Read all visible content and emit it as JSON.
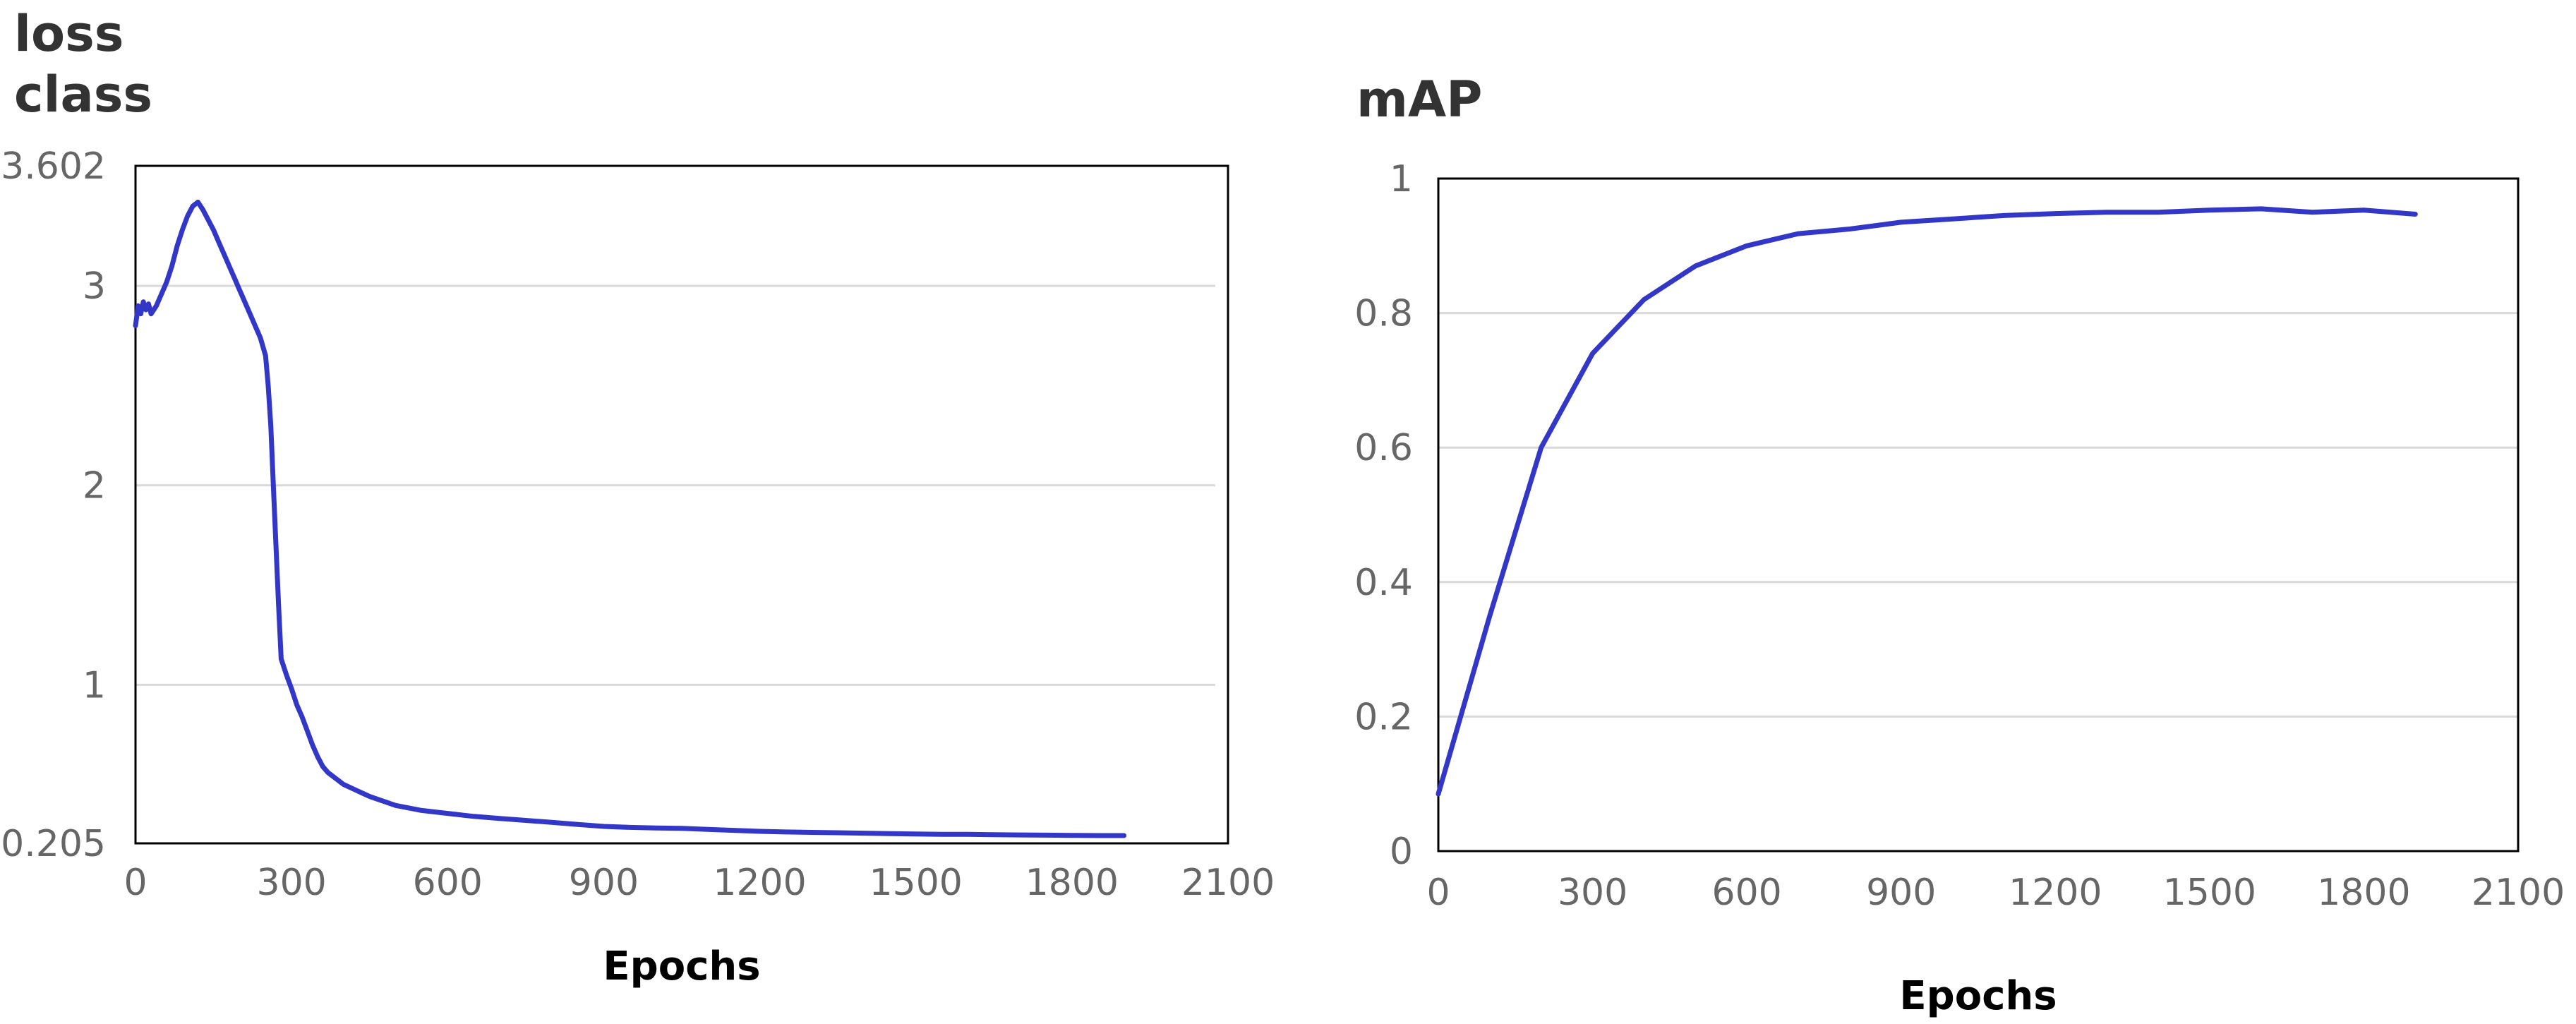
{
  "chart_data": [
    {
      "type": "line",
      "title_lines": [
        "loss",
        "class"
      ],
      "xlabel": "Epochs",
      "ylabel": "",
      "xlim": [
        0,
        2100
      ],
      "ylim": [
        0.205,
        3.602
      ],
      "x_ticks": [
        0,
        300,
        600,
        900,
        1200,
        1500,
        1800,
        2100
      ],
      "y_ticks": [
        0.205,
        1,
        2,
        3,
        3.602
      ],
      "y_gridlines": [
        1,
        2,
        3
      ],
      "grid": true,
      "legend": "none",
      "line_color": "#3337c8",
      "series": [
        {
          "x": [
            0,
            5,
            10,
            15,
            20,
            25,
            30,
            40,
            50,
            60,
            70,
            80,
            90,
            100,
            110,
            120,
            130,
            140,
            150,
            160,
            170,
            180,
            190,
            200,
            210,
            220,
            230,
            240,
            250,
            255,
            260,
            265,
            270,
            275,
            280,
            290,
            300,
            310,
            320,
            330,
            340,
            350,
            360,
            370,
            380,
            400,
            450,
            500,
            550,
            600,
            650,
            700,
            750,
            800,
            850,
            900,
            950,
            1000,
            1050,
            1100,
            1150,
            1200,
            1250,
            1300,
            1350,
            1400,
            1450,
            1500,
            1550,
            1600,
            1650,
            1700,
            1750,
            1800,
            1850,
            1900
          ],
          "y": [
            2.8,
            2.9,
            2.86,
            2.92,
            2.88,
            2.91,
            2.86,
            2.9,
            2.96,
            3.02,
            3.1,
            3.2,
            3.28,
            3.35,
            3.4,
            3.42,
            3.38,
            3.33,
            3.28,
            3.22,
            3.16,
            3.1,
            3.04,
            2.98,
            2.92,
            2.86,
            2.8,
            2.74,
            2.65,
            2.5,
            2.3,
            2.0,
            1.7,
            1.4,
            1.13,
            1.05,
            0.98,
            0.9,
            0.84,
            0.77,
            0.7,
            0.64,
            0.59,
            0.56,
            0.54,
            0.5,
            0.44,
            0.395,
            0.37,
            0.355,
            0.34,
            0.33,
            0.32,
            0.31,
            0.3,
            0.29,
            0.285,
            0.282,
            0.28,
            0.275,
            0.27,
            0.265,
            0.262,
            0.26,
            0.258,
            0.256,
            0.254,
            0.252,
            0.25,
            0.25,
            0.248,
            0.247,
            0.246,
            0.245,
            0.244,
            0.244
          ]
        }
      ]
    },
    {
      "type": "line",
      "title_lines": [
        "mAP"
      ],
      "xlabel": "Epochs",
      "ylabel": "",
      "xlim": [
        0,
        2100
      ],
      "ylim": [
        0,
        1
      ],
      "x_ticks": [
        0,
        300,
        600,
        900,
        1200,
        1500,
        1800,
        2100
      ],
      "y_ticks": [
        0,
        0.2,
        0.4,
        0.6,
        0.8,
        1
      ],
      "y_gridlines": [
        0.2,
        0.4,
        0.6,
        0.8
      ],
      "grid": true,
      "legend": "none",
      "line_color": "#3337c8",
      "series": [
        {
          "x": [
            0,
            100,
            200,
            300,
            400,
            500,
            600,
            700,
            800,
            900,
            1000,
            1100,
            1200,
            1300,
            1400,
            1500,
            1600,
            1700,
            1800,
            1900
          ],
          "y": [
            0.085,
            0.35,
            0.6,
            0.74,
            0.82,
            0.87,
            0.9,
            0.918,
            0.925,
            0.935,
            0.94,
            0.945,
            0.948,
            0.95,
            0.95,
            0.953,
            0.955,
            0.95,
            0.953,
            0.947
          ]
        }
      ]
    }
  ]
}
